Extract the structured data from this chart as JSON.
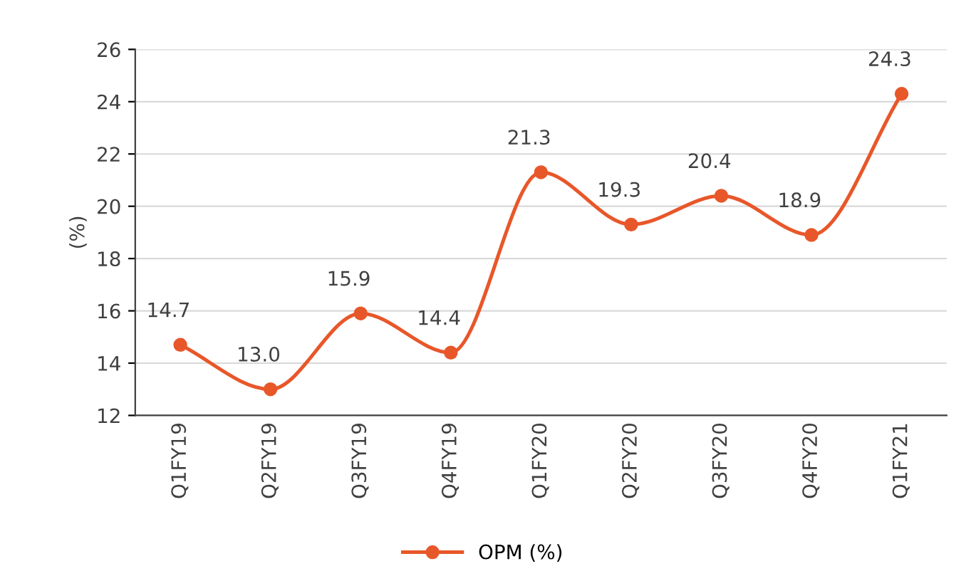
{
  "chart_data": {
    "type": "line",
    "ylabel": "(%)",
    "categories": [
      "Q1FY19",
      "Q2FY19",
      "Q3FY19",
      "Q4FY19",
      "Q1FY20",
      "Q2FY20",
      "Q3FY20",
      "Q4FY20",
      "Q1FY21"
    ],
    "series": [
      {
        "name": "OPM (%)",
        "color": "#e8572a",
        "values": [
          14.7,
          13.0,
          15.9,
          14.4,
          21.3,
          19.3,
          20.4,
          18.9,
          24.3
        ],
        "value_labels": [
          "14.7",
          "13.0",
          "15.9",
          "14.4",
          "21.3",
          "19.3",
          "20.4",
          "18.9",
          "24.3"
        ]
      }
    ],
    "ylim": [
      12,
      26
    ],
    "yticks": [
      12,
      14,
      16,
      18,
      20,
      22,
      24,
      26
    ],
    "grid": "y",
    "legend": "bottom",
    "marker": "circle",
    "line_style": "solid"
  }
}
